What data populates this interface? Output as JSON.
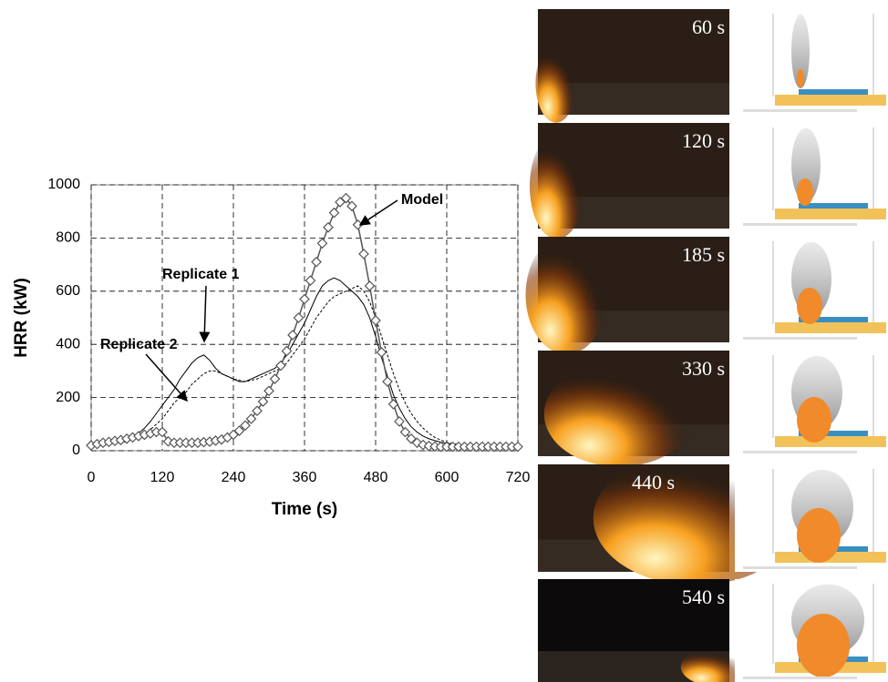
{
  "chart_data": {
    "type": "line",
    "y_label": "HRR (kW)",
    "x_label": "Time (s)",
    "xlim": [
      0,
      720
    ],
    "xticks": [
      0,
      120,
      240,
      360,
      480,
      600,
      720
    ],
    "ylim": [
      0,
      1000
    ],
    "yticks": [
      0,
      200,
      400,
      600,
      800,
      1000
    ],
    "grid": true,
    "annotations": [
      "Model",
      "Replicate 1",
      "Replicate 2"
    ],
    "x": [
      0,
      10,
      20,
      30,
      40,
      50,
      60,
      70,
      80,
      90,
      100,
      110,
      120,
      130,
      140,
      150,
      160,
      170,
      180,
      190,
      200,
      210,
      220,
      230,
      240,
      250,
      260,
      270,
      280,
      290,
      300,
      310,
      320,
      330,
      340,
      350,
      360,
      370,
      380,
      390,
      400,
      410,
      420,
      430,
      440,
      450,
      460,
      470,
      480,
      490,
      500,
      510,
      520,
      530,
      540,
      550,
      560,
      570,
      580,
      590,
      600,
      610,
      620,
      630,
      640,
      650,
      660,
      670,
      680,
      690,
      700,
      710,
      720
    ],
    "series": [
      {
        "name": "Replicate 1",
        "color": "#000000",
        "style": "solid",
        "values": [
          20,
          25,
          28,
          30,
          32,
          35,
          40,
          50,
          65,
          85,
          110,
          140,
          170,
          200,
          230,
          270,
          300,
          330,
          350,
          360,
          340,
          310,
          290,
          280,
          270,
          260,
          260,
          270,
          280,
          290,
          300,
          310,
          330,
          360,
          400,
          440,
          480,
          530,
          580,
          620,
          640,
          650,
          640,
          620,
          600,
          580,
          550,
          500,
          430,
          350,
          280,
          210,
          160,
          120,
          90,
          70,
          55,
          45,
          38,
          32,
          28,
          25,
          22,
          20,
          18,
          16,
          15,
          14,
          13,
          12,
          12,
          11,
          10
        ]
      },
      {
        "name": "Replicate 2",
        "color": "#000000",
        "style": "dashed",
        "values": [
          15,
          20,
          22,
          25,
          28,
          30,
          35,
          40,
          50,
          60,
          80,
          100,
          120,
          150,
          180,
          200,
          220,
          250,
          270,
          290,
          300,
          300,
          290,
          280,
          270,
          265,
          260,
          265,
          270,
          280,
          290,
          300,
          310,
          330,
          360,
          390,
          420,
          460,
          500,
          530,
          560,
          580,
          590,
          600,
          610,
          620,
          600,
          560,
          500,
          430,
          360,
          290,
          230,
          180,
          140,
          110,
          85,
          65,
          50,
          40,
          32,
          27,
          23,
          20,
          18,
          16,
          15,
          14,
          13,
          12,
          11,
          10,
          10
        ]
      },
      {
        "name": "Model",
        "color": "#555555",
        "style": "markers",
        "values": [
          20,
          25,
          30,
          33,
          37,
          40,
          45,
          50,
          55,
          60,
          65,
          70,
          70,
          35,
          30,
          30,
          30,
          30,
          30,
          32,
          34,
          38,
          42,
          50,
          60,
          75,
          95,
          120,
          150,
          185,
          225,
          270,
          320,
          375,
          435,
          500,
          570,
          640,
          710,
          780,
          840,
          895,
          935,
          950,
          920,
          850,
          740,
          620,
          490,
          370,
          260,
          175,
          110,
          70,
          45,
          30,
          22,
          18,
          16,
          15,
          15,
          15,
          15,
          15,
          15,
          15,
          15,
          15,
          15,
          15,
          15,
          15,
          15
        ]
      }
    ]
  },
  "frames": [
    "60 s",
    "120 s",
    "185 s",
    "330 s",
    "440 s",
    "540 s"
  ]
}
